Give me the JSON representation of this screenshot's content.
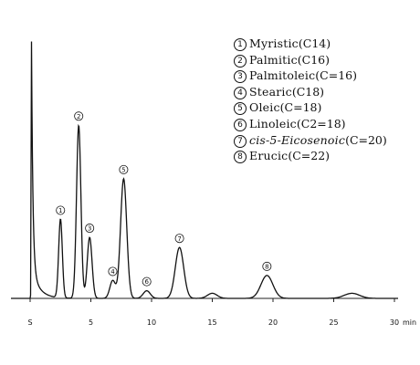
{
  "legend": [
    {
      "num": "1",
      "name": "Myristic",
      "formula": "(C14)"
    },
    {
      "num": "2",
      "name": "Palmitic",
      "formula": "(C16)"
    },
    {
      "num": "3",
      "name": "Palmitoleic",
      "formula": "(C=16)"
    },
    {
      "num": "4",
      "name": "Stearic",
      "formula": "(C18)"
    },
    {
      "num": "5",
      "name": "Oleic",
      "formula": "(C=18)"
    },
    {
      "num": "6",
      "name": "Linoleic",
      "formula": "(C2=18)"
    },
    {
      "num": "7",
      "name": "cis-5-Eicosenoic",
      "formula": "(C=20)"
    },
    {
      "num": "8",
      "name": "Erucic",
      "formula": "(C=22)"
    }
  ],
  "chart_data": {
    "type": "line",
    "x_ticks": [
      "S",
      "5",
      "10",
      "15",
      "20",
      "25",
      "30"
    ],
    "x_unit": "min",
    "xlim": [
      0,
      30
    ],
    "solvent_peak": {
      "x": 0.1,
      "height": 1.0
    },
    "peaks": [
      {
        "label": "1",
        "x": 2.5,
        "height": 0.31
      },
      {
        "label": "2",
        "x": 4.0,
        "height": 0.68
      },
      {
        "label": "3",
        "x": 4.9,
        "height": 0.24
      },
      {
        "label": "4",
        "x": 6.8,
        "height": 0.07
      },
      {
        "label": "5",
        "x": 7.7,
        "height": 0.47
      },
      {
        "label": "6",
        "x": 9.6,
        "height": 0.03
      },
      {
        "label": "7",
        "x": 12.3,
        "height": 0.2
      },
      {
        "label": "8",
        "x": 19.5,
        "height": 0.09
      }
    ],
    "minor_peaks": [
      {
        "x": 15.0,
        "height": 0.02
      },
      {
        "x": 26.5,
        "height": 0.02
      }
    ]
  }
}
